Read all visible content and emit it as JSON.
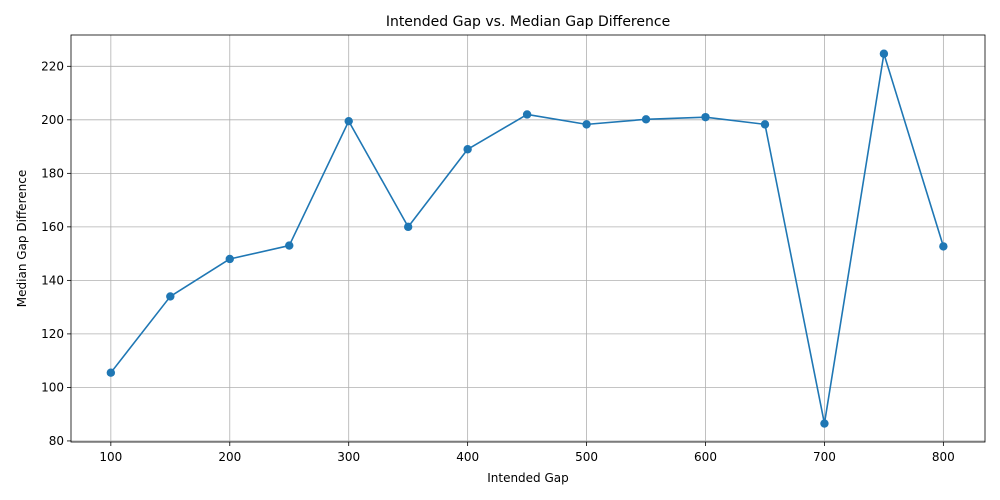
{
  "chart_data": {
    "type": "line",
    "title": "Intended Gap vs. Median Gap Difference",
    "xlabel": "Intended Gap",
    "ylabel": "Median Gap Difference",
    "x": [
      100,
      150,
      200,
      250,
      300,
      350,
      400,
      450,
      500,
      550,
      600,
      650,
      700,
      750,
      800
    ],
    "series": [
      {
        "values": [
          105.5,
          134,
          148,
          153,
          199.5,
          160,
          189,
          202,
          198.3,
          200.2,
          201,
          198.3,
          86.5,
          224.7,
          152.7
        ],
        "color": "#1f77b4",
        "marker": "circle"
      }
    ],
    "xlim": [
      66.5,
      835.0
    ],
    "ylim": [
      79.6,
      231.7
    ],
    "xticks": [
      100,
      200,
      300,
      400,
      500,
      600,
      700,
      800
    ],
    "yticks": [
      80,
      100,
      120,
      140,
      160,
      180,
      200,
      220
    ],
    "grid": true
  }
}
